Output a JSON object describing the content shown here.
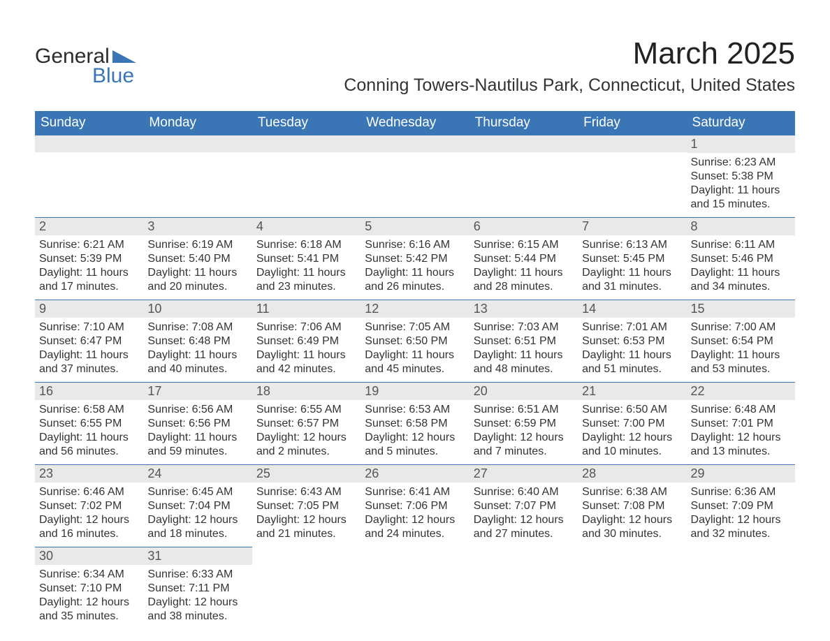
{
  "brand": {
    "word1": "General",
    "word2": "Blue",
    "accent_color": "#3a76b5"
  },
  "title": "March 2025",
  "location": "Conning Towers-Nautilus Park, Connecticut, United States",
  "colors": {
    "header_bg": "#3a76b5",
    "header_text": "#ffffff",
    "daynum_bg": "#e9e9e9",
    "daynum_text": "#555555",
    "body_text": "#333333",
    "rule": "#3a76b5"
  },
  "daynames": [
    "Sunday",
    "Monday",
    "Tuesday",
    "Wednesday",
    "Thursday",
    "Friday",
    "Saturday"
  ],
  "weeks": [
    [
      null,
      null,
      null,
      null,
      null,
      null,
      {
        "n": "1",
        "sunrise": "Sunrise: 6:23 AM",
        "sunset": "Sunset: 5:38 PM",
        "day1": "Daylight: 11 hours",
        "day2": "and 15 minutes."
      }
    ],
    [
      {
        "n": "2",
        "sunrise": "Sunrise: 6:21 AM",
        "sunset": "Sunset: 5:39 PM",
        "day1": "Daylight: 11 hours",
        "day2": "and 17 minutes."
      },
      {
        "n": "3",
        "sunrise": "Sunrise: 6:19 AM",
        "sunset": "Sunset: 5:40 PM",
        "day1": "Daylight: 11 hours",
        "day2": "and 20 minutes."
      },
      {
        "n": "4",
        "sunrise": "Sunrise: 6:18 AM",
        "sunset": "Sunset: 5:41 PM",
        "day1": "Daylight: 11 hours",
        "day2": "and 23 minutes."
      },
      {
        "n": "5",
        "sunrise": "Sunrise: 6:16 AM",
        "sunset": "Sunset: 5:42 PM",
        "day1": "Daylight: 11 hours",
        "day2": "and 26 minutes."
      },
      {
        "n": "6",
        "sunrise": "Sunrise: 6:15 AM",
        "sunset": "Sunset: 5:44 PM",
        "day1": "Daylight: 11 hours",
        "day2": "and 28 minutes."
      },
      {
        "n": "7",
        "sunrise": "Sunrise: 6:13 AM",
        "sunset": "Sunset: 5:45 PM",
        "day1": "Daylight: 11 hours",
        "day2": "and 31 minutes."
      },
      {
        "n": "8",
        "sunrise": "Sunrise: 6:11 AM",
        "sunset": "Sunset: 5:46 PM",
        "day1": "Daylight: 11 hours",
        "day2": "and 34 minutes."
      }
    ],
    [
      {
        "n": "9",
        "sunrise": "Sunrise: 7:10 AM",
        "sunset": "Sunset: 6:47 PM",
        "day1": "Daylight: 11 hours",
        "day2": "and 37 minutes."
      },
      {
        "n": "10",
        "sunrise": "Sunrise: 7:08 AM",
        "sunset": "Sunset: 6:48 PM",
        "day1": "Daylight: 11 hours",
        "day2": "and 40 minutes."
      },
      {
        "n": "11",
        "sunrise": "Sunrise: 7:06 AM",
        "sunset": "Sunset: 6:49 PM",
        "day1": "Daylight: 11 hours",
        "day2": "and 42 minutes."
      },
      {
        "n": "12",
        "sunrise": "Sunrise: 7:05 AM",
        "sunset": "Sunset: 6:50 PM",
        "day1": "Daylight: 11 hours",
        "day2": "and 45 minutes."
      },
      {
        "n": "13",
        "sunrise": "Sunrise: 7:03 AM",
        "sunset": "Sunset: 6:51 PM",
        "day1": "Daylight: 11 hours",
        "day2": "and 48 minutes."
      },
      {
        "n": "14",
        "sunrise": "Sunrise: 7:01 AM",
        "sunset": "Sunset: 6:53 PM",
        "day1": "Daylight: 11 hours",
        "day2": "and 51 minutes."
      },
      {
        "n": "15",
        "sunrise": "Sunrise: 7:00 AM",
        "sunset": "Sunset: 6:54 PM",
        "day1": "Daylight: 11 hours",
        "day2": "and 53 minutes."
      }
    ],
    [
      {
        "n": "16",
        "sunrise": "Sunrise: 6:58 AM",
        "sunset": "Sunset: 6:55 PM",
        "day1": "Daylight: 11 hours",
        "day2": "and 56 minutes."
      },
      {
        "n": "17",
        "sunrise": "Sunrise: 6:56 AM",
        "sunset": "Sunset: 6:56 PM",
        "day1": "Daylight: 11 hours",
        "day2": "and 59 minutes."
      },
      {
        "n": "18",
        "sunrise": "Sunrise: 6:55 AM",
        "sunset": "Sunset: 6:57 PM",
        "day1": "Daylight: 12 hours",
        "day2": "and 2 minutes."
      },
      {
        "n": "19",
        "sunrise": "Sunrise: 6:53 AM",
        "sunset": "Sunset: 6:58 PM",
        "day1": "Daylight: 12 hours",
        "day2": "and 5 minutes."
      },
      {
        "n": "20",
        "sunrise": "Sunrise: 6:51 AM",
        "sunset": "Sunset: 6:59 PM",
        "day1": "Daylight: 12 hours",
        "day2": "and 7 minutes."
      },
      {
        "n": "21",
        "sunrise": "Sunrise: 6:50 AM",
        "sunset": "Sunset: 7:00 PM",
        "day1": "Daylight: 12 hours",
        "day2": "and 10 minutes."
      },
      {
        "n": "22",
        "sunrise": "Sunrise: 6:48 AM",
        "sunset": "Sunset: 7:01 PM",
        "day1": "Daylight: 12 hours",
        "day2": "and 13 minutes."
      }
    ],
    [
      {
        "n": "23",
        "sunrise": "Sunrise: 6:46 AM",
        "sunset": "Sunset: 7:02 PM",
        "day1": "Daylight: 12 hours",
        "day2": "and 16 minutes."
      },
      {
        "n": "24",
        "sunrise": "Sunrise: 6:45 AM",
        "sunset": "Sunset: 7:04 PM",
        "day1": "Daylight: 12 hours",
        "day2": "and 18 minutes."
      },
      {
        "n": "25",
        "sunrise": "Sunrise: 6:43 AM",
        "sunset": "Sunset: 7:05 PM",
        "day1": "Daylight: 12 hours",
        "day2": "and 21 minutes."
      },
      {
        "n": "26",
        "sunrise": "Sunrise: 6:41 AM",
        "sunset": "Sunset: 7:06 PM",
        "day1": "Daylight: 12 hours",
        "day2": "and 24 minutes."
      },
      {
        "n": "27",
        "sunrise": "Sunrise: 6:40 AM",
        "sunset": "Sunset: 7:07 PM",
        "day1": "Daylight: 12 hours",
        "day2": "and 27 minutes."
      },
      {
        "n": "28",
        "sunrise": "Sunrise: 6:38 AM",
        "sunset": "Sunset: 7:08 PM",
        "day1": "Daylight: 12 hours",
        "day2": "and 30 minutes."
      },
      {
        "n": "29",
        "sunrise": "Sunrise: 6:36 AM",
        "sunset": "Sunset: 7:09 PM",
        "day1": "Daylight: 12 hours",
        "day2": "and 32 minutes."
      }
    ],
    [
      {
        "n": "30",
        "sunrise": "Sunrise: 6:34 AM",
        "sunset": "Sunset: 7:10 PM",
        "day1": "Daylight: 12 hours",
        "day2": "and 35 minutes."
      },
      {
        "n": "31",
        "sunrise": "Sunrise: 6:33 AM",
        "sunset": "Sunset: 7:11 PM",
        "day1": "Daylight: 12 hours",
        "day2": "and 38 minutes."
      },
      null,
      null,
      null,
      null,
      null
    ]
  ]
}
